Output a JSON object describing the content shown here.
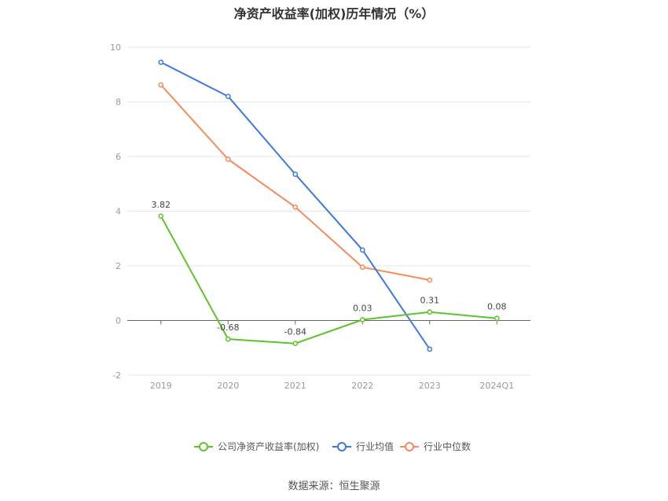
{
  "title": "净资产收益率(加权)历年情况（%）",
  "source": "数据来源：恒生聚源",
  "chart_data": {
    "type": "line",
    "title": "净资产收益率(加权)历年情况（%）",
    "xlabel": "",
    "ylabel": "",
    "categories": [
      "2019",
      "2020",
      "2021",
      "2022",
      "2023",
      "2024Q1"
    ],
    "ylim": [
      -2,
      10
    ],
    "yticks": [
      -2,
      0,
      2,
      4,
      6,
      8,
      10
    ],
    "grid": true,
    "legend_position": "bottom",
    "series": [
      {
        "name": "公司净资产收益率(加权)",
        "color": "#5cc42a",
        "values": [
          3.82,
          -0.68,
          -0.84,
          0.03,
          0.31,
          0.08
        ],
        "labels": [
          "3.82",
          "-0.68",
          "-0.84",
          "0.03",
          "0.31",
          "0.08"
        ]
      },
      {
        "name": "行业均值",
        "color": "#3b78e0",
        "values": [
          9.45,
          8.2,
          5.35,
          2.58,
          -1.05,
          null
        ]
      },
      {
        "name": "行业中位数",
        "color": "#f58a5c",
        "values": [
          8.62,
          5.9,
          4.15,
          1.95,
          1.48,
          null
        ]
      }
    ]
  }
}
